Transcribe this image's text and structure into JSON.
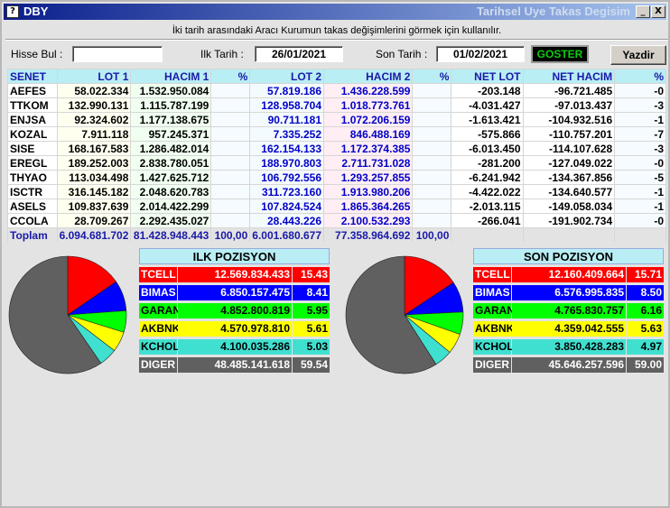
{
  "window": {
    "title": "DBY",
    "subtitle": "Tarihsel Uye Takas Degisim",
    "app_icon": "question-icon",
    "min_label": "_",
    "close_label": "X"
  },
  "info_text": "İki tarih arasındaki  Aracı Kurumun takas değişimlerini görmek için kullanılır.",
  "filters": {
    "hisse_label": "Hisse Bul :",
    "hisse_value": "",
    "ilk_label": "Ilk Tarih :",
    "ilk_value": "26/01/2021",
    "son_label": "Son Tarih :",
    "son_value": "01/02/2021",
    "goster_label": "GOSTER",
    "yazdir_label": "Yazdir"
  },
  "table": {
    "headers": [
      "SENET",
      "LOT 1",
      "HACIM 1",
      "%",
      "LOT 2",
      "HACIM 2",
      "%",
      "NET LOT",
      "NET HACIM",
      "%"
    ],
    "rows": [
      [
        "AEFES",
        "58.022.334",
        "1.532.950.084",
        "",
        "57.819.186",
        "1.436.228.599",
        "",
        "-203.148",
        "-96.721.485",
        "-0"
      ],
      [
        "TTKOM",
        "132.990.131",
        "1.115.787.199",
        "",
        "128.958.704",
        "1.018.773.761",
        "",
        "-4.031.427",
        "-97.013.437",
        "-3"
      ],
      [
        "ENJSA",
        "92.324.602",
        "1.177.138.675",
        "",
        "90.711.181",
        "1.072.206.159",
        "",
        "-1.613.421",
        "-104.932.516",
        "-1"
      ],
      [
        "KOZAL",
        "7.911.118",
        "957.245.371",
        "",
        "7.335.252",
        "846.488.169",
        "",
        "-575.866",
        "-110.757.201",
        "-7"
      ],
      [
        "SISE",
        "168.167.583",
        "1.286.482.014",
        "",
        "162.154.133",
        "1.172.374.385",
        "",
        "-6.013.450",
        "-114.107.628",
        "-3"
      ],
      [
        "EREGL",
        "189.252.003",
        "2.838.780.051",
        "",
        "188.970.803",
        "2.711.731.028",
        "",
        "-281.200",
        "-127.049.022",
        "-0"
      ],
      [
        "THYAO",
        "113.034.498",
        "1.427.625.712",
        "",
        "106.792.556",
        "1.293.257.855",
        "",
        "-6.241.942",
        "-134.367.856",
        "-5"
      ],
      [
        "ISCTR",
        "316.145.182",
        "2.048.620.783",
        "",
        "311.723.160",
        "1.913.980.206",
        "",
        "-4.422.022",
        "-134.640.577",
        "-1"
      ],
      [
        "ASELS",
        "109.837.639",
        "2.014.422.299",
        "",
        "107.824.524",
        "1.865.364.265",
        "",
        "-2.013.115",
        "-149.058.034",
        "-1"
      ],
      [
        "CCOLA",
        "28.709.267",
        "2.292.435.027",
        "",
        "28.443.226",
        "2.100.532.293",
        "",
        "-266.041",
        "-191.902.734",
        "-0"
      ]
    ],
    "total": [
      "Toplam",
      "6.094.681.702",
      "81.428.948.443",
      "100,00",
      "6.001.680.677",
      "77.358.964.692",
      "100,00",
      "",
      "",
      ""
    ]
  },
  "ilk_pozisyon": {
    "title": "ILK POZISYON",
    "rows": [
      {
        "name": "TCELL",
        "value": "12.569.834.433",
        "pct": "15.43",
        "bg": "#ff0000",
        "fg": "#ffffff"
      },
      {
        "name": "BIMAS",
        "value": "6.850.157.475",
        "pct": "8.41",
        "bg": "#0000ff",
        "fg": "#ffffff"
      },
      {
        "name": "GARAN",
        "value": "4.852.800.819",
        "pct": "5.95",
        "bg": "#00ff00",
        "fg": "#000000"
      },
      {
        "name": "AKBNK",
        "value": "4.570.978.810",
        "pct": "5.61",
        "bg": "#ffff00",
        "fg": "#000000"
      },
      {
        "name": "KCHOL",
        "value": "4.100.035.286",
        "pct": "5.03",
        "bg": "#40e0d0",
        "fg": "#000000"
      },
      {
        "name": "DIGER",
        "value": "48.485.141.618",
        "pct": "59.54",
        "bg": "#606060",
        "fg": "#ffffff"
      }
    ]
  },
  "son_pozisyon": {
    "title": "SON POZISYON",
    "rows": [
      {
        "name": "TCELL",
        "value": "12.160.409.664",
        "pct": "15.71",
        "bg": "#ff0000",
        "fg": "#ffffff"
      },
      {
        "name": "BIMAS",
        "value": "6.576.995.835",
        "pct": "8.50",
        "bg": "#0000ff",
        "fg": "#ffffff"
      },
      {
        "name": "GARAN",
        "value": "4.765.830.757",
        "pct": "6.16",
        "bg": "#00ff00",
        "fg": "#000000"
      },
      {
        "name": "AKBNK",
        "value": "4.359.042.555",
        "pct": "5.63",
        "bg": "#ffff00",
        "fg": "#000000"
      },
      {
        "name": "KCHOL",
        "value": "3.850.428.283",
        "pct": "4.97",
        "bg": "#40e0d0",
        "fg": "#000000"
      },
      {
        "name": "DIGER",
        "value": "45.646.257.596",
        "pct": "59.00",
        "bg": "#606060",
        "fg": "#ffffff"
      }
    ]
  }
}
